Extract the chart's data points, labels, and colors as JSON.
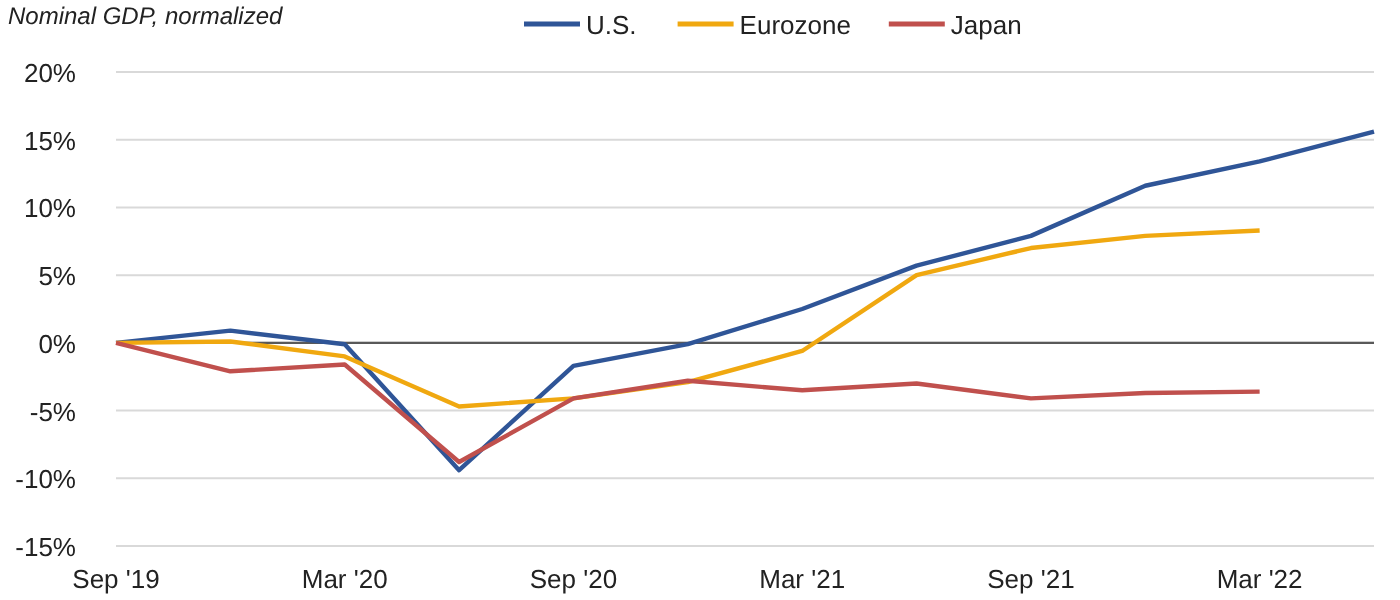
{
  "chart_data": {
    "type": "line",
    "title": "Nominal GDP, normalized",
    "categories": [
      "Sep '19",
      null,
      "Mar '20",
      null,
      "Sep '20",
      null,
      "Mar '21",
      null,
      "Sep '21",
      null,
      "Mar '22",
      null
    ],
    "series": [
      {
        "name": "U.S.",
        "color": "#2f5597",
        "values": [
          0,
          0.9,
          -0.1,
          -9.4,
          -1.7,
          -0.1,
          2.5,
          5.7,
          7.9,
          11.6,
          13.4,
          15.6
        ]
      },
      {
        "name": "Eurozone",
        "color": "#f0a810",
        "values": [
          0,
          0.1,
          -1.0,
          -4.7,
          -4.1,
          -2.9,
          -0.6,
          5.0,
          7.0,
          7.9,
          8.3,
          null
        ]
      },
      {
        "name": "Japan",
        "color": "#c0504d",
        "values": [
          0,
          -2.1,
          -1.6,
          -8.8,
          -4.1,
          -2.8,
          -3.5,
          -3.0,
          -4.1,
          -3.7,
          -3.6,
          null
        ]
      }
    ],
    "ylim": [
      -15,
      20
    ],
    "yticks": [
      {
        "value": -15,
        "label": "-15%"
      },
      {
        "value": -10,
        "label": "-10%"
      },
      {
        "value": -5,
        "label": "-5%"
      },
      {
        "value": 0,
        "label": "0%"
      },
      {
        "value": 5,
        "label": "5%"
      },
      {
        "value": 10,
        "label": "10%"
      },
      {
        "value": 15,
        "label": "15%"
      },
      {
        "value": 20,
        "label": "20%"
      }
    ],
    "grid": "y",
    "legend": "top",
    "marker": "none",
    "line_style": "solid",
    "ref_lines": [
      {
        "axis": "y",
        "value": 0,
        "color": "#595959"
      }
    ]
  }
}
